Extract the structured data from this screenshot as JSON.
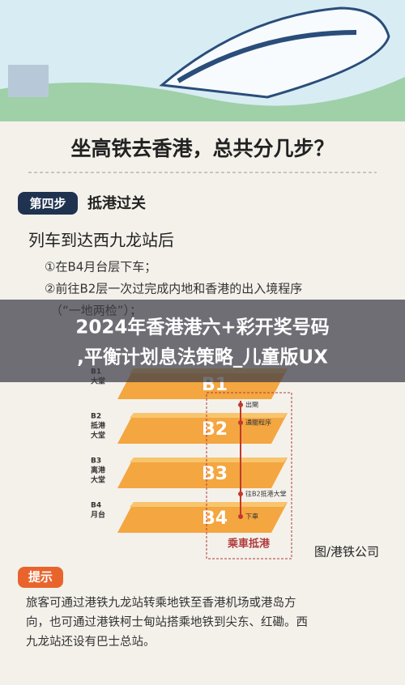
{
  "header": {
    "title": "坐高铁去香港，总共分几步？"
  },
  "step": {
    "badge": "第四步",
    "name": "抵港过关"
  },
  "body": {
    "heading": "列车到达西九龙站后",
    "items": [
      "①在B4月台层下车；",
      "②前往B2层一次过完成内地和香港的出入境程序",
      "（“一地两检”）；"
    ]
  },
  "overlay": {
    "lines": [
      "2024年香港港六+彩开奖号码",
      ",平衡计划息法策略_儿童版UX"
    ]
  },
  "diagram": {
    "floors": [
      {
        "code": "B1",
        "label": [
          "B1",
          "大堂"
        ]
      },
      {
        "code": "B2",
        "label": [
          "B2",
          "抵港",
          "大堂"
        ]
      },
      {
        "code": "B3",
        "label": [
          "B3",
          "离港",
          "大堂"
        ]
      },
      {
        "code": "B4",
        "label": [
          "B4",
          "月台"
        ]
      }
    ],
    "arrow_labels": [
      "出閘",
      "通關程序",
      "往B2抵港大堂",
      "下車"
    ],
    "route": "乘車抵港",
    "credit": "图/港铁公司"
  },
  "tip": {
    "badge": "提示",
    "lines": [
      "旅客可通过港铁九龙站转乘地铁至香港机场或港岛方",
      "向，也可通过港铁柯士甸站搭乘地铁到尖东、红磡。西",
      "九龙站还设有巴士总站。"
    ]
  }
}
